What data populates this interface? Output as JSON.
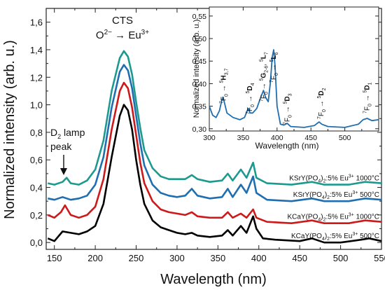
{
  "chart_data": [
    {
      "type": "line",
      "xlabel": "Wavelength (nm)",
      "ylabel": "Normalized intensity (arb. u.)",
      "xlim": [
        140,
        550
      ],
      "ylim": [
        -0.05,
        1.7
      ],
      "x_ticks": [
        "150",
        "200",
        "250",
        "300",
        "350",
        "400",
        "450",
        "500",
        "550"
      ],
      "y_ticks": [
        "0,0",
        "0,2",
        "0,4",
        "0,6",
        "0,8",
        "1,0",
        "1,2",
        "1,4",
        "1,6"
      ],
      "grid": false,
      "series": [
        {
          "name": "KCaY(PO4)2:5% Eu3+ 500°C",
          "name_parts": {
            "base": "KCaY(PO",
            "sub1": "4",
            "mid": ")",
            "sub2": "2",
            "dop": ":5% Eu",
            "sup": "3+",
            "temp": " 500°C"
          },
          "color": "#000000",
          "points": [
            [
              142,
              0.03
            ],
            [
              150,
              0.01
            ],
            [
              160,
              0.08
            ],
            [
              170,
              0.07
            ],
            [
              180,
              0.06
            ],
            [
              190,
              0.08
            ],
            [
              200,
              0.12
            ],
            [
              210,
              0.28
            ],
            [
              220,
              0.62
            ],
            [
              230,
              0.92
            ],
            [
              235,
              1.0
            ],
            [
              240,
              0.96
            ],
            [
              245,
              0.82
            ],
            [
              250,
              0.6
            ],
            [
              255,
              0.42
            ],
            [
              260,
              0.28
            ],
            [
              270,
              0.16
            ],
            [
              280,
              0.11
            ],
            [
              290,
              0.09
            ],
            [
              300,
              0.07
            ],
            [
              310,
              0.06
            ],
            [
              318,
              0.07
            ],
            [
              325,
              0.05
            ],
            [
              340,
              0.04
            ],
            [
              355,
              0.05
            ],
            [
              362,
              0.09
            ],
            [
              368,
              0.05
            ],
            [
              378,
              0.12
            ],
            [
              385,
              0.07
            ],
            [
              393,
              0.19
            ],
            [
              397,
              0.1
            ],
            [
              405,
              0.03
            ],
            [
              420,
              0.02
            ],
            [
              450,
              0.01
            ],
            [
              465,
              0.03
            ],
            [
              480,
              0.0
            ],
            [
              500,
              0.0
            ],
            [
              525,
              0.02
            ],
            [
              535,
              0.03
            ],
            [
              550,
              0.01
            ]
          ]
        },
        {
          "name": "KCaY(PO4)2:5% Eu3+ 1000°C",
          "name_parts": {
            "base": "KCaY(PO",
            "sub1": "4",
            "mid": ")",
            "sub2": "2",
            "dop": ":5% Eu",
            "sup": "3+",
            "temp": " 1000°C"
          },
          "color": "#cc1a1a",
          "points": [
            [
              142,
              0.2
            ],
            [
              150,
              0.18
            ],
            [
              158,
              0.22
            ],
            [
              163,
              0.27
            ],
            [
              170,
              0.2
            ],
            [
              180,
              0.18
            ],
            [
              190,
              0.2
            ],
            [
              200,
              0.26
            ],
            [
              210,
              0.46
            ],
            [
              220,
              0.82
            ],
            [
              230,
              1.1
            ],
            [
              235,
              1.16
            ],
            [
              240,
              1.12
            ],
            [
              245,
              0.98
            ],
            [
              250,
              0.78
            ],
            [
              255,
              0.58
            ],
            [
              260,
              0.43
            ],
            [
              270,
              0.3
            ],
            [
              280,
              0.24
            ],
            [
              290,
              0.22
            ],
            [
              300,
              0.21
            ],
            [
              310,
              0.2
            ],
            [
              318,
              0.22
            ],
            [
              325,
              0.19
            ],
            [
              340,
              0.18
            ],
            [
              355,
              0.18
            ],
            [
              362,
              0.22
            ],
            [
              368,
              0.18
            ],
            [
              378,
              0.21
            ],
            [
              385,
              0.18
            ],
            [
              393,
              0.24
            ],
            [
              397,
              0.18
            ],
            [
              410,
              0.15
            ],
            [
              440,
              0.14
            ],
            [
              465,
              0.16
            ],
            [
              480,
              0.14
            ],
            [
              510,
              0.14
            ],
            [
              530,
              0.16
            ],
            [
              550,
              0.15
            ]
          ]
        },
        {
          "name": "KSrY(PO4)2:5% Eu3+ 500°C",
          "name_parts": {
            "base": "KSrY(PO",
            "sub1": "4",
            "mid": ")",
            "sub2": "2",
            "dop": ":5% Eu",
            "sup": "3+",
            "temp": " 500°C"
          },
          "color": "#1f6fb0",
          "points": [
            [
              142,
              0.32
            ],
            [
              150,
              0.31
            ],
            [
              160,
              0.33
            ],
            [
              170,
              0.31
            ],
            [
              180,
              0.32
            ],
            [
              190,
              0.34
            ],
            [
              200,
              0.42
            ],
            [
              210,
              0.62
            ],
            [
              220,
              0.98
            ],
            [
              230,
              1.24
            ],
            [
              235,
              1.29
            ],
            [
              240,
              1.25
            ],
            [
              245,
              1.12
            ],
            [
              250,
              0.92
            ],
            [
              255,
              0.72
            ],
            [
              260,
              0.56
            ],
            [
              270,
              0.42
            ],
            [
              280,
              0.36
            ],
            [
              290,
              0.34
            ],
            [
              300,
              0.33
            ],
            [
              310,
              0.34
            ],
            [
              318,
              0.39
            ],
            [
              325,
              0.34
            ],
            [
              340,
              0.32
            ],
            [
              355,
              0.33
            ],
            [
              362,
              0.39
            ],
            [
              368,
              0.33
            ],
            [
              378,
              0.42
            ],
            [
              385,
              0.36
            ],
            [
              393,
              0.48
            ],
            [
              397,
              0.36
            ],
            [
              410,
              0.31
            ],
            [
              440,
              0.3
            ],
            [
              465,
              0.32
            ],
            [
              480,
              0.3
            ],
            [
              510,
              0.3
            ],
            [
              530,
              0.32
            ],
            [
              550,
              0.31
            ]
          ]
        },
        {
          "name": "KSrY(PO4)2:5% Eu3+ 1000°C",
          "name_parts": {
            "base": "KSrY(PO",
            "sub1": "4",
            "mid": ")",
            "sub2": "2",
            "dop": ":5% Eu",
            "sup": "3+",
            "temp": " 1000°C"
          },
          "color": "#1c9a8e",
          "points": [
            [
              142,
              0.43
            ],
            [
              150,
              0.42
            ],
            [
              160,
              0.44
            ],
            [
              165,
              0.47
            ],
            [
              170,
              0.43
            ],
            [
              180,
              0.42
            ],
            [
              190,
              0.45
            ],
            [
              200,
              0.53
            ],
            [
              210,
              0.74
            ],
            [
              220,
              1.1
            ],
            [
              230,
              1.34
            ],
            [
              235,
              1.39
            ],
            [
              240,
              1.35
            ],
            [
              245,
              1.22
            ],
            [
              250,
              1.02
            ],
            [
              255,
              0.83
            ],
            [
              260,
              0.67
            ],
            [
              270,
              0.54
            ],
            [
              280,
              0.48
            ],
            [
              290,
              0.46
            ],
            [
              300,
              0.46
            ],
            [
              310,
              0.46
            ],
            [
              318,
              0.49
            ],
            [
              325,
              0.46
            ],
            [
              340,
              0.44
            ],
            [
              355,
              0.45
            ],
            [
              362,
              0.5
            ],
            [
              368,
              0.45
            ],
            [
              378,
              0.53
            ],
            [
              385,
              0.47
            ],
            [
              393,
              0.58
            ],
            [
              397,
              0.47
            ],
            [
              410,
              0.43
            ],
            [
              440,
              0.42
            ],
            [
              465,
              0.44
            ],
            [
              480,
              0.42
            ],
            [
              510,
              0.42
            ],
            [
              530,
              0.44
            ],
            [
              550,
              0.43
            ]
          ]
        }
      ],
      "annotations": {
        "cts_line1": "CTS",
        "cts_line2": "O2− → Eu3+",
        "cts_o": "O",
        "cts_o_sup": "2−",
        "cts_arrow": " → Eu",
        "cts_eu_sup": "3+",
        "lamp_line1_main": "D",
        "lamp_line1_sub": "2",
        "lamp_line1_rest": " lamp",
        "lamp_line2": "peak"
      }
    },
    {
      "type": "line",
      "role": "inset",
      "xlabel": "Wavelength (nm)",
      "ylabel": "Normalized intensity (arb. u.)",
      "xlim": [
        300,
        550
      ],
      "ylim": [
        0.295,
        0.57
      ],
      "x_ticks": [
        "300",
        "350",
        "400",
        "450",
        "500"
      ],
      "y_ticks": [
        "0,30",
        "0,35",
        "0,40",
        "0,45",
        "0,50",
        "0,55"
      ],
      "grid": false,
      "series": [
        {
          "name": "KSrY(PO4)2:5% Eu3+ 500°C",
          "color": "#1f6fb0",
          "points": [
            [
              300,
              0.35
            ],
            [
              305,
              0.33
            ],
            [
              310,
              0.325
            ],
            [
              315,
              0.34
            ],
            [
              318,
              0.36
            ],
            [
              320,
              0.37
            ],
            [
              322,
              0.36
            ],
            [
              326,
              0.335
            ],
            [
              335,
              0.325
            ],
            [
              345,
              0.32
            ],
            [
              352,
              0.325
            ],
            [
              356,
              0.34
            ],
            [
              358,
              0.345
            ],
            [
              360,
              0.335
            ],
            [
              364,
              0.335
            ],
            [
              370,
              0.345
            ],
            [
              376,
              0.37
            ],
            [
              380,
              0.385
            ],
            [
              383,
              0.37
            ],
            [
              387,
              0.36
            ],
            [
              390,
              0.4
            ],
            [
              393,
              0.46
            ],
            [
              395,
              0.475
            ],
            [
              397,
              0.44
            ],
            [
              400,
              0.35
            ],
            [
              405,
              0.31
            ],
            [
              410,
              0.308
            ],
            [
              415,
              0.312
            ],
            [
              420,
              0.305
            ],
            [
              440,
              0.303
            ],
            [
              455,
              0.307
            ],
            [
              462,
              0.315
            ],
            [
              466,
              0.31
            ],
            [
              475,
              0.305
            ],
            [
              500,
              0.303
            ],
            [
              520,
              0.31
            ],
            [
              527,
              0.32
            ],
            [
              533,
              0.323
            ],
            [
              540,
              0.318
            ],
            [
              550,
              0.32
            ]
          ]
        }
      ],
      "transitions": [
        {
          "x": 320,
          "base": "7F",
          "sub1": "0",
          "arrow": " → ",
          "sup": "5",
          "term": "H",
          "sub2": "3,7"
        },
        {
          "x": 359,
          "base": "7F",
          "sub1": "0",
          "arrow": " → ",
          "sup": "5",
          "term": "D",
          "sub2": "4"
        },
        {
          "x": 379,
          "base": "7F",
          "sub1": "0",
          "arrow": " → ",
          "sup": "5",
          "term": "G",
          "sub2": "2-6",
          "tail": ", ",
          "tail_sup": "5",
          "tail_term": "L",
          "tail_sub": "7"
        },
        {
          "x": 394,
          "base": "7F",
          "sub1": "0",
          "arrow": " → ",
          "sup": "5",
          "term": "L",
          "sub2": "6"
        },
        {
          "x": 414,
          "base": "7F",
          "sub1": "0",
          "arrow": " → ",
          "sup": "5",
          "term": "D",
          "sub2": "3"
        },
        {
          "x": 464,
          "base": "7F",
          "sub1": "0",
          "arrow": " → ",
          "sup": "5",
          "term": "D",
          "sub2": "2"
        },
        {
          "x": 532,
          "base": "7F",
          "sub1": "0",
          "arrow": " → ",
          "sup": "5",
          "term": "D",
          "sub2": "1"
        }
      ]
    }
  ]
}
